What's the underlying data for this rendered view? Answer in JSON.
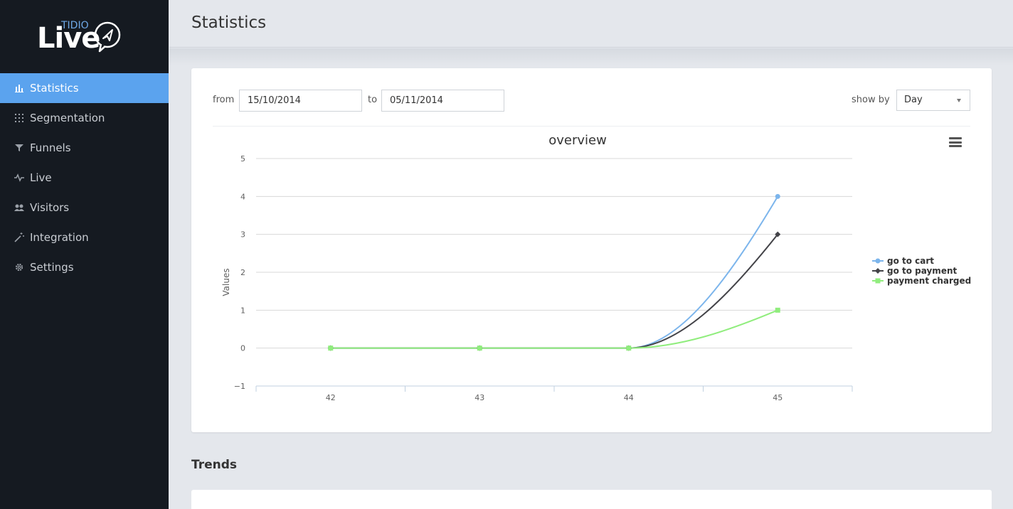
{
  "brand": {
    "name": "Live",
    "sub": "TIDIO"
  },
  "sidebar": {
    "items": [
      {
        "label": "Statistics",
        "icon": "bar-chart-icon",
        "active": true
      },
      {
        "label": "Segmentation",
        "icon": "grid-dots-icon"
      },
      {
        "label": "Funnels",
        "icon": "funnel-icon"
      },
      {
        "label": "Live",
        "icon": "pulse-icon"
      },
      {
        "label": "Visitors",
        "icon": "users-icon"
      },
      {
        "label": "Integration",
        "icon": "magic-wand-icon"
      },
      {
        "label": "Settings",
        "icon": "gear-icon"
      }
    ]
  },
  "header": {
    "title": "Statistics"
  },
  "filters": {
    "from_label": "from",
    "from_value": "15/10/2014",
    "to_label": "to",
    "to_value": "05/11/2014",
    "showby_label": "show by",
    "showby_value": "Day"
  },
  "colors": {
    "accent": "#5ba3ee",
    "sidebar_bg": "#151a21",
    "series1": "#7cb5ec",
    "series2": "#434348",
    "series3": "#90ed7d"
  },
  "chart_data": {
    "type": "line",
    "title": "overview",
    "ylabel": "Values",
    "xlabel": "",
    "x": [
      42,
      43,
      44,
      45
    ],
    "yticks": [
      -1,
      0,
      1,
      2,
      3,
      4,
      5
    ],
    "ylim": [
      -1,
      5
    ],
    "grid": true,
    "legend_position": "right",
    "series": [
      {
        "name": "go to cart",
        "values": [
          0,
          0,
          0,
          4
        ],
        "color": "#7cb5ec",
        "marker": "circle"
      },
      {
        "name": "go to payment",
        "values": [
          0,
          0,
          0,
          3
        ],
        "color": "#434348",
        "marker": "diamond"
      },
      {
        "name": "payment charged",
        "values": [
          0,
          0,
          0,
          1
        ],
        "color": "#90ed7d",
        "marker": "square"
      }
    ]
  },
  "trends": {
    "title": "Trends"
  }
}
